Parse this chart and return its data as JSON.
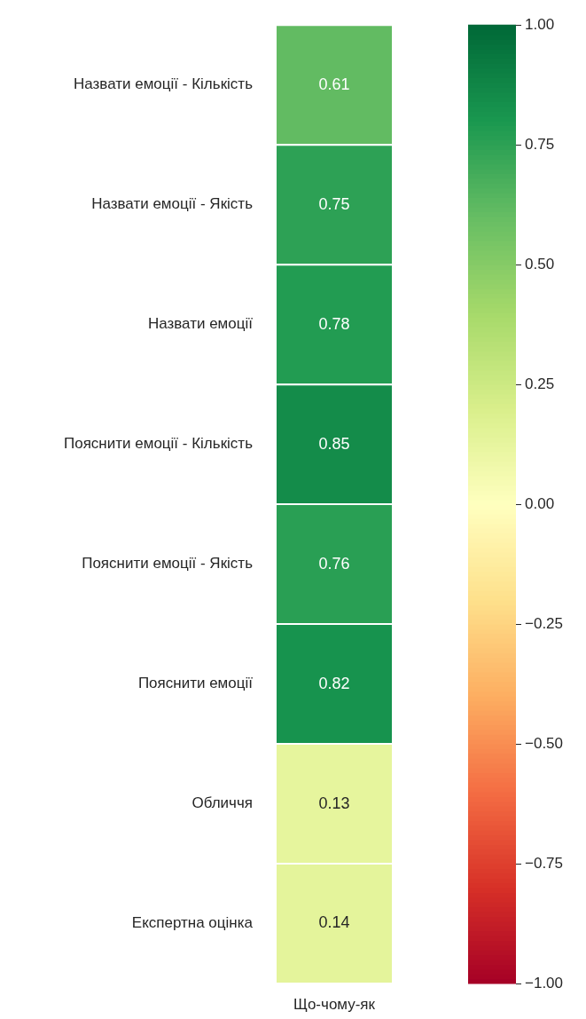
{
  "chart_data": {
    "type": "heatmap",
    "categories": [
      "Що-чому-як"
    ],
    "y_categories": [
      "Назвати емоції - Кількість",
      "Назвати емоції - Якість",
      "Назвати емоції",
      "Пояснити емоції - Кількість",
      "Пояснити емоції - Якість",
      "Пояснити емоції",
      "Обличчя",
      "Експертна оцінка"
    ],
    "cells": [
      [
        0.61
      ],
      [
        0.75
      ],
      [
        0.78
      ],
      [
        0.85
      ],
      [
        0.76
      ],
      [
        0.82
      ],
      [
        0.13
      ],
      [
        0.14
      ]
    ],
    "data_labels": true,
    "clim": [
      -1,
      1
    ],
    "cticks": [
      {
        "value": -1,
        "label": "−1.00"
      },
      {
        "value": -0.75,
        "label": "−0.75"
      },
      {
        "value": -0.5,
        "label": "−0.50"
      },
      {
        "value": -0.25,
        "label": "−0.25"
      },
      {
        "value": 0,
        "label": "0.00"
      },
      {
        "value": 0.25,
        "label": "0.25"
      },
      {
        "value": 0.5,
        "label": "0.50"
      },
      {
        "value": 0.75,
        "label": "0.75"
      },
      {
        "value": 1,
        "label": "1.00"
      }
    ]
  }
}
